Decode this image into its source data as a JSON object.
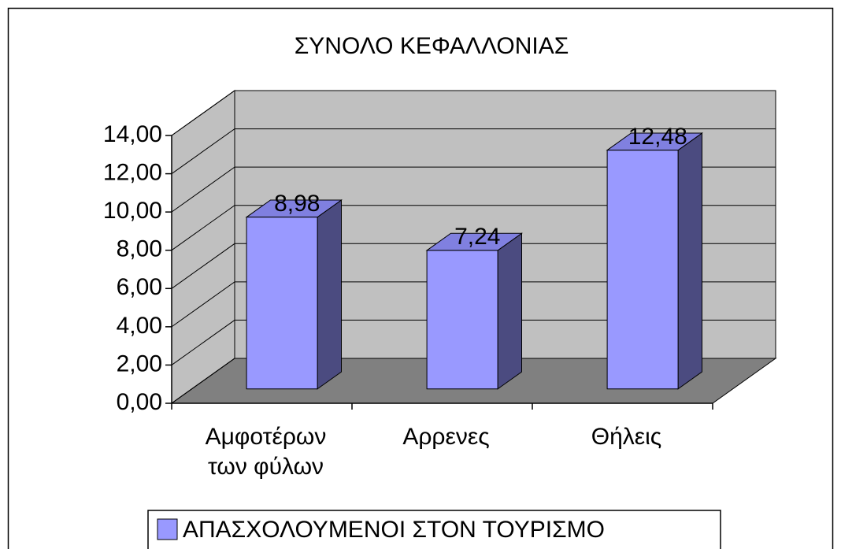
{
  "chart_data": {
    "type": "bar3d",
    "title": "ΣΥΝΟΛΟ ΚΕΦΑΛΛΟΝΙΑΣ",
    "categories": [
      "Αμφοτέρων των φύλων",
      "Αρρενες",
      "Θήλεις"
    ],
    "series": [
      {
        "name": "ΑΠΑΣΧΟΛΟΥΜΕΝΟΙ ΣΤΟΝ ΤΟΥΡΙΣΜΟ",
        "color": "#9999ff",
        "values": [
          8.98,
          7.24,
          12.48
        ],
        "value_labels": [
          "8,98",
          "7,24",
          "12,48"
        ]
      }
    ],
    "ylim": [
      0,
      14
    ],
    "yticks": [
      {
        "value": 0,
        "label": "0,00"
      },
      {
        "value": 2,
        "label": "2,00"
      },
      {
        "value": 4,
        "label": "4,00"
      },
      {
        "value": 6,
        "label": "6,00"
      },
      {
        "value": 8,
        "label": "8,00"
      },
      {
        "value": 10,
        "label": "10,00"
      },
      {
        "value": 12,
        "label": "12,00"
      },
      {
        "value": 14,
        "label": "14,00"
      }
    ],
    "grid": true,
    "legend": "bottom"
  }
}
